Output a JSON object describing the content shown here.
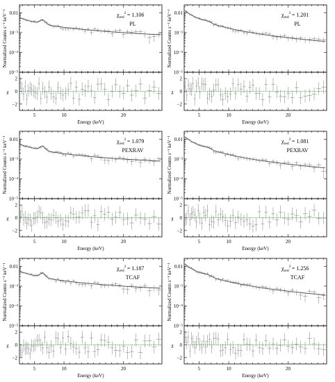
{
  "chart_data": [
    {
      "type": "scatter",
      "row": 0,
      "col": 0,
      "model": "PL",
      "chi_sym": "χ",
      "chi_sub": "red",
      "chi_sup": "2",
      "chi_value": "= 1.106",
      "ylabel": "Normalized Counts s⁻¹ keV⁻¹",
      "xlabel": "Energy (keV)",
      "resid_label": "χ",
      "xticks": [
        "5",
        "10",
        "20"
      ],
      "yticks": [
        "0.01",
        "10⁻³",
        "10⁻⁴",
        "10⁻⁵"
      ],
      "rticks": [
        "2",
        "0",
        "−2"
      ],
      "xlim": [
        2.5,
        26.5
      ],
      "ylim_log": [
        -5,
        -1.6
      ],
      "rlim": [
        -3,
        3
      ],
      "log_scale": "y",
      "spectrum": {
        "norm": 0.0055,
        "index": 1.9,
        "gamma": 6.4,
        "gamma_amp": 0.6,
        "gamma_width": 0.6
      }
    },
    {
      "type": "scatter",
      "row": 0,
      "col": 1,
      "model": "PL",
      "chi_sym": "χ",
      "chi_sub": "red",
      "chi_sup": "2",
      "chi_value": "= 1.201",
      "ylabel": "Normalized Counts s⁻¹ keV⁻¹",
      "xlabel": "Energy (keV)",
      "resid_label": "χ",
      "xticks": [
        "5",
        "10",
        "20"
      ],
      "yticks": [
        "0.01",
        "10⁻³",
        "10⁻⁴",
        "10⁻⁵"
      ],
      "rticks": [
        "2",
        "0",
        "−2"
      ],
      "xlim": [
        2.5,
        26.5
      ],
      "ylim_log": [
        -5,
        -1.6
      ],
      "rlim": [
        -3,
        3
      ],
      "log_scale": "y",
      "spectrum": {
        "norm": 0.0115,
        "index": 2.6,
        "gamma": 6.4,
        "gamma_amp": 0.15,
        "gamma_width": 0.8
      }
    },
    {
      "type": "scatter",
      "row": 1,
      "col": 0,
      "model": "PEXRAV",
      "chi_sym": "χ",
      "chi_sub": "red",
      "chi_sup": "2",
      "chi_value": "= 1.079",
      "ylabel": "Normalized Counts s⁻¹ keV⁻¹",
      "xlabel": "Energy (keV)",
      "resid_label": "χ",
      "xticks": [
        "5",
        "10",
        "20"
      ],
      "yticks": [
        "0.01",
        "10⁻³",
        "10⁻⁴",
        "10⁻⁵"
      ],
      "rticks": [
        "2",
        "0",
        "−2"
      ],
      "xlim": [
        2.5,
        26.5
      ],
      "ylim_log": [
        -5,
        -1.6
      ],
      "rlim": [
        -3,
        3
      ],
      "log_scale": "y",
      "spectrum": {
        "norm": 0.0055,
        "index": 1.9,
        "gamma": 6.4,
        "gamma_amp": 0.6,
        "gamma_width": 0.6
      }
    },
    {
      "type": "scatter",
      "row": 1,
      "col": 1,
      "model": "PEXRAV",
      "chi_sym": "χ",
      "chi_sub": "red",
      "chi_sup": "2",
      "chi_value": "= 1.081",
      "ylabel": "Normalized Counts s⁻¹ keV⁻¹",
      "xlabel": "Energy (keV)",
      "resid_label": "χ",
      "xticks": [
        "5",
        "10",
        "20"
      ],
      "yticks": [
        "0.01",
        "10⁻³",
        "10⁻⁴",
        "10⁻⁵"
      ],
      "rticks": [
        "2",
        "0",
        "−2"
      ],
      "xlim": [
        2.5,
        26.5
      ],
      "ylim_log": [
        -5,
        -1.6
      ],
      "rlim": [
        -3,
        3
      ],
      "log_scale": "y",
      "spectrum": {
        "norm": 0.0115,
        "index": 2.6,
        "gamma": 6.4,
        "gamma_amp": 0.15,
        "gamma_width": 0.8
      }
    },
    {
      "type": "scatter",
      "row": 2,
      "col": 0,
      "model": "TCAF",
      "chi_sym": "χ",
      "chi_sub": "red",
      "chi_sup": "2",
      "chi_value": "= 1.187",
      "ylabel": "Normalized Counts s⁻¹ keV⁻¹",
      "xlabel": "Energy (keV)",
      "resid_label": "χ",
      "xticks": [
        "5",
        "10",
        "20"
      ],
      "yticks": [
        "0.01",
        "10⁻³",
        "10⁻⁴",
        "10⁻⁵"
      ],
      "rticks": [
        "2",
        "0",
        "−2"
      ],
      "xlim": [
        2.5,
        26.5
      ],
      "ylim_log": [
        -5,
        -1.6
      ],
      "rlim": [
        -3,
        3
      ],
      "log_scale": "y",
      "spectrum": {
        "norm": 0.0055,
        "index": 1.9,
        "gamma": 6.4,
        "gamma_amp": 0.6,
        "gamma_width": 0.6
      }
    },
    {
      "type": "scatter",
      "row": 2,
      "col": 1,
      "model": "TCAF",
      "chi_sym": "χ",
      "chi_sub": "red",
      "chi_sup": "2",
      "chi_value": "= 1.256",
      "ylabel": "Normalized Counts s⁻¹ keV⁻¹",
      "xlabel": "Energy (keV)",
      "resid_label": "χ",
      "xticks": [
        "5",
        "10",
        "20"
      ],
      "yticks": [
        "0.01",
        "10⁻³",
        "10⁻⁴",
        "10⁻⁵"
      ],
      "rticks": [
        "2",
        "0",
        "−2"
      ],
      "xlim": [
        2.5,
        26.5
      ],
      "ylim_log": [
        -5,
        -1.6
      ],
      "rlim": [
        -3,
        3
      ],
      "log_scale": "y",
      "spectrum": {
        "norm": 0.0115,
        "index": 2.6,
        "gamma": 6.4,
        "gamma_amp": 0.15,
        "gamma_width": 0.8
      }
    }
  ],
  "colors": {
    "data": "#777777",
    "model": "#444444",
    "zero_line": "#2ca02c",
    "axis": "#000000"
  }
}
